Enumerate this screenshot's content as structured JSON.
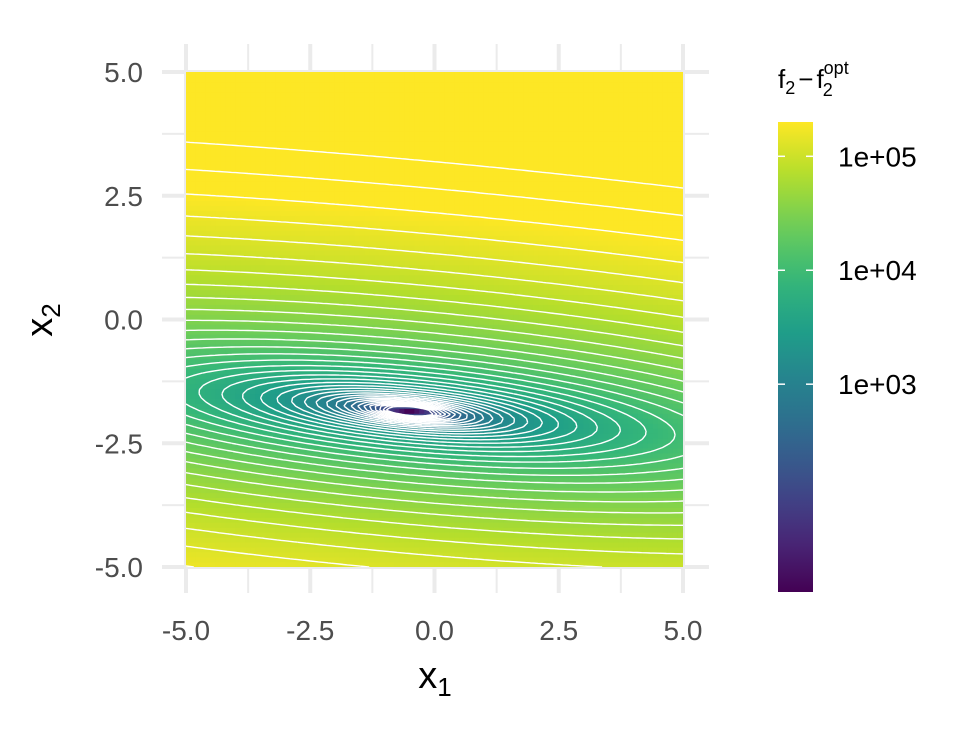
{
  "chart_data": {
    "type": "heatmap",
    "subtype": "filled-contour",
    "xlabel": {
      "base": "x",
      "sub": "1"
    },
    "ylabel": {
      "base": "x",
      "sub": "2"
    },
    "xlim": [
      -5,
      5
    ],
    "ylim": [
      -5,
      5
    ],
    "x_ticks": [
      -5,
      -2.5,
      0,
      2.5,
      5
    ],
    "y_ticks": [
      -5,
      -2.5,
      0,
      2.5,
      5
    ],
    "x_tick_labels": [
      "-5.0",
      "-2.5",
      "0.0",
      "2.5",
      "5.0"
    ],
    "y_tick_labels": [
      "-5.0",
      "-2.5",
      "0.0",
      "2.5",
      "5.0"
    ],
    "grid": true,
    "minimum": {
      "x": -0.5,
      "y": -1.85
    },
    "valley_slope": -0.09,
    "contour_line_color": "#ffffff",
    "colorscale": "viridis",
    "colorbar": {
      "title": {
        "f": "f",
        "sub": "2",
        "minus": "−",
        "sup": "opt"
      },
      "scale": "log",
      "range": [
        15,
        200000
      ],
      "ticks": [
        1000,
        10000,
        100000
      ],
      "tick_labels": [
        "1e+03",
        "1e+04",
        "1e+05"
      ]
    },
    "legend_position": "right"
  }
}
